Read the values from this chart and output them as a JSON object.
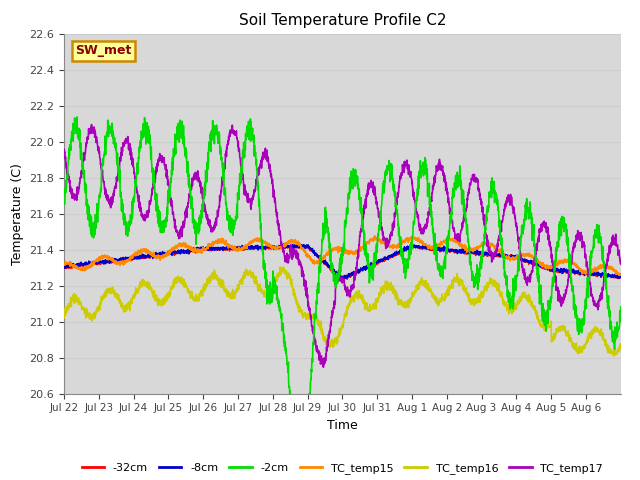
{
  "title": "Soil Temperature Profile C2",
  "xlabel": "Time",
  "ylabel": "Temperature (C)",
  "ylim": [
    20.6,
    22.6
  ],
  "annotation": "SW_met",
  "annotation_bg": "#FFFF99",
  "annotation_border": "#CC8800",
  "annotation_text_color": "#880000",
  "grid_color": "#cccccc",
  "bg_color": "#d8d8d8",
  "series": {
    "-32cm": {
      "color": "#ff0000",
      "lw": 1.0
    },
    "-8cm": {
      "color": "#0000cc",
      "lw": 1.0
    },
    "-2cm": {
      "color": "#00dd00",
      "lw": 1.2
    },
    "TC_temp15": {
      "color": "#ff8800",
      "lw": 1.2
    },
    "TC_temp16": {
      "color": "#cccc00",
      "lw": 1.2
    },
    "TC_temp17": {
      "color": "#aa00bb",
      "lw": 1.2
    }
  },
  "xtick_labels": [
    "Jul 22",
    "Jul 23",
    "Jul 24",
    "Jul 25",
    "Jul 26",
    "Jul 27",
    "Jul 28",
    "Jul 29",
    "Jul 30",
    "Jul 31",
    "Aug 1",
    "Aug 2",
    "Aug 3",
    "Aug 4",
    "Aug 5",
    "Aug 6"
  ],
  "ytick_labels": [
    "20.6",
    "20.8",
    "21.0",
    "21.2",
    "21.4",
    "21.6",
    "21.8",
    "22.0",
    "22.2",
    "22.4",
    "22.6"
  ],
  "ytick_vals": [
    20.6,
    20.8,
    21.0,
    21.2,
    21.4,
    21.6,
    21.8,
    22.0,
    22.2,
    22.4,
    22.6
  ],
  "n_days": 16,
  "pts_per_day": 144
}
